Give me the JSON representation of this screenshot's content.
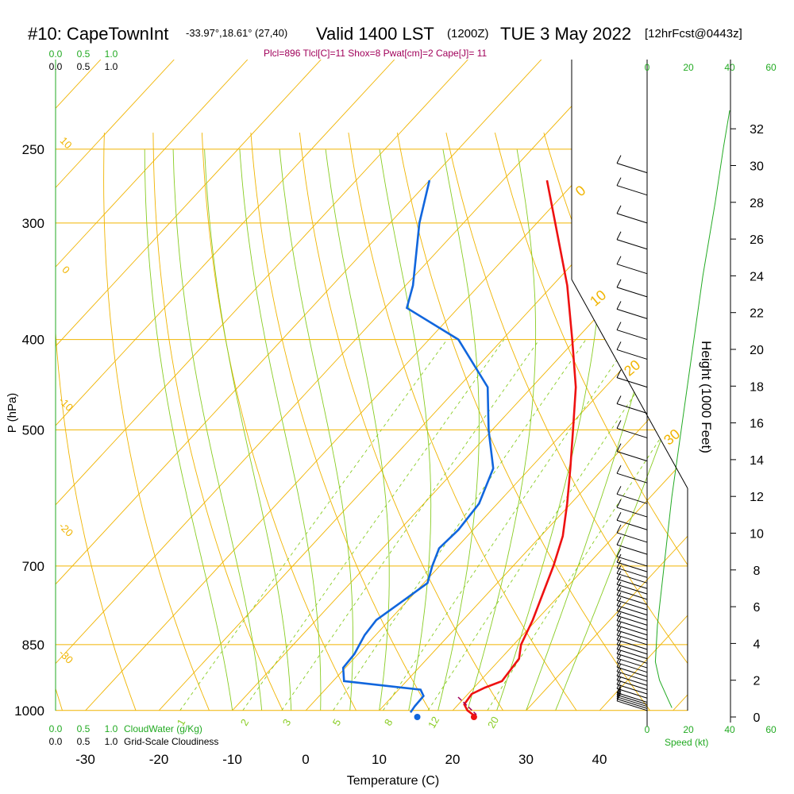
{
  "title": {
    "station": "#10: CapeTownInt",
    "coords": "-33.97°,18.61° (27,40)",
    "valid": "Valid 1400 LST",
    "zulu": "(1200Z)",
    "date": "TUE 3 May 2022",
    "forecast": "[12hrFcst@0443z]"
  },
  "indices_text": "Plcl=896 Tlcl[C]=11 Shox=8 Pwat[cm]=2 Cape[J]= 11",
  "colors": {
    "temperature": "#ee1111",
    "dewpoint": "#1166dd",
    "isobar": "#f0b400",
    "dry_adiabat": "#f0b400",
    "moist_adiabat": "#88cc22",
    "mixing_ratio": "#88cc22",
    "wind_speed": "#22aa22",
    "indices": "#a0005a",
    "cloud_water": "#22aa22"
  },
  "chart_data": {
    "type": "skew-t",
    "xlabel": "Temperature (C)",
    "ylabel": "P (hPa)",
    "right_axis_label": "Height (1000 Feet)",
    "x_ticks": [
      -30,
      -20,
      -10,
      0,
      10,
      20,
      30,
      40
    ],
    "pressure_levels": [
      250,
      300,
      400,
      500,
      700,
      850,
      1000
    ],
    "height_ticks": [
      0,
      2,
      4,
      6,
      8,
      10,
      12,
      14,
      16,
      18,
      20,
      22,
      24,
      26,
      28,
      30,
      32
    ],
    "isotherm_labels": [
      {
        "label": "10"
      },
      {
        "label": "0"
      },
      {
        "label": "-10"
      },
      {
        "label": "-20"
      },
      {
        "label": "-30"
      }
    ],
    "dry_adiabat_labels": [
      "0",
      "10",
      "20",
      "30"
    ],
    "mixing_ratio_labels": [
      "1",
      "2",
      "3",
      "5",
      "8",
      "12",
      "20"
    ],
    "temperature_profile": [
      {
        "p": 1012,
        "t": 23.5
      },
      {
        "p": 1000,
        "t": 22.0
      },
      {
        "p": 985,
        "t": 20.8
      },
      {
        "p": 960,
        "t": 20.5
      },
      {
        "p": 945,
        "t": 21.5
      },
      {
        "p": 930,
        "t": 23.0
      },
      {
        "p": 880,
        "t": 22.5
      },
      {
        "p": 850,
        "t": 21.0
      },
      {
        "p": 800,
        "t": 19.5
      },
      {
        "p": 700,
        "t": 15.5
      },
      {
        "p": 650,
        "t": 13.0
      },
      {
        "p": 600,
        "t": 9.5
      },
      {
        "p": 550,
        "t": 5.5
      },
      {
        "p": 500,
        "t": 1.0
      },
      {
        "p": 450,
        "t": -4.0
      },
      {
        "p": 400,
        "t": -10.5
      },
      {
        "p": 350,
        "t": -18.0
      },
      {
        "p": 300,
        "t": -27.5
      },
      {
        "p": 270,
        "t": -34.0
      }
    ],
    "dewpoint_profile": [
      {
        "p": 1005,
        "d": 14.5
      },
      {
        "p": 990,
        "d": 14.3
      },
      {
        "p": 965,
        "d": 14.2
      },
      {
        "p": 950,
        "d": 13.0
      },
      {
        "p": 930,
        "d": 1.5
      },
      {
        "p": 900,
        "d": -0.3
      },
      {
        "p": 870,
        "d": -0.5
      },
      {
        "p": 830,
        "d": -1.5
      },
      {
        "p": 800,
        "d": -1.8
      },
      {
        "p": 760,
        "d": -0.5
      },
      {
        "p": 730,
        "d": 0.5
      },
      {
        "p": 700,
        "d": -1.0
      },
      {
        "p": 670,
        "d": -2.3
      },
      {
        "p": 640,
        "d": -2.0
      },
      {
        "p": 600,
        "d": -2.5
      },
      {
        "p": 550,
        "d": -5.0
      },
      {
        "p": 500,
        "d": -10.5
      },
      {
        "p": 450,
        "d": -16.0
      },
      {
        "p": 400,
        "d": -26.0
      },
      {
        "p": 370,
        "d": -37.0
      },
      {
        "p": 350,
        "d": -39.0
      },
      {
        "p": 300,
        "d": -46.0
      },
      {
        "p": 270,
        "d": -50.0
      }
    ],
    "surface_temperature": 23.5,
    "surface_dewpoint": 16.0,
    "wind_speed_axis": [
      0,
      20,
      40,
      60
    ],
    "wind_speed_unit": "Speed (kt)",
    "wind_speed_profile": [
      {
        "h": 0.5,
        "s": 12
      },
      {
        "h": 1.0,
        "s": 10
      },
      {
        "h": 2.0,
        "s": 6
      },
      {
        "h": 3.0,
        "s": 4
      },
      {
        "h": 5.0,
        "s": 5
      },
      {
        "h": 8.0,
        "s": 8
      },
      {
        "h": 12.0,
        "s": 12
      },
      {
        "h": 16.0,
        "s": 17
      },
      {
        "h": 20.0,
        "s": 22
      },
      {
        "h": 24.0,
        "s": 27
      },
      {
        "h": 28.0,
        "s": 33
      },
      {
        "h": 31.0,
        "s": 37
      },
      {
        "h": 33.0,
        "s": 40
      }
    ],
    "wind_barb_levels": [
      1000,
      995,
      990,
      985,
      980,
      970,
      960,
      950,
      940,
      930,
      920,
      910,
      900,
      890,
      880,
      870,
      860,
      850,
      840,
      830,
      820,
      810,
      800,
      790,
      780,
      770,
      760,
      750,
      740,
      730,
      720,
      710,
      700,
      680,
      660,
      640,
      620,
      600,
      570,
      540,
      510,
      480,
      450,
      420,
      400,
      380,
      360,
      340,
      320,
      300,
      280,
      265
    ],
    "cloud_water_label": "CloudWater (g/Kg)",
    "cloudiness_label": "Grid-Scale Cloudiness",
    "cloud_scale_top_green": [
      "0.0",
      "0.5",
      "1.0"
    ],
    "cloud_scale_top_black": [
      "0.0",
      "0.5",
      "1.0"
    ]
  }
}
